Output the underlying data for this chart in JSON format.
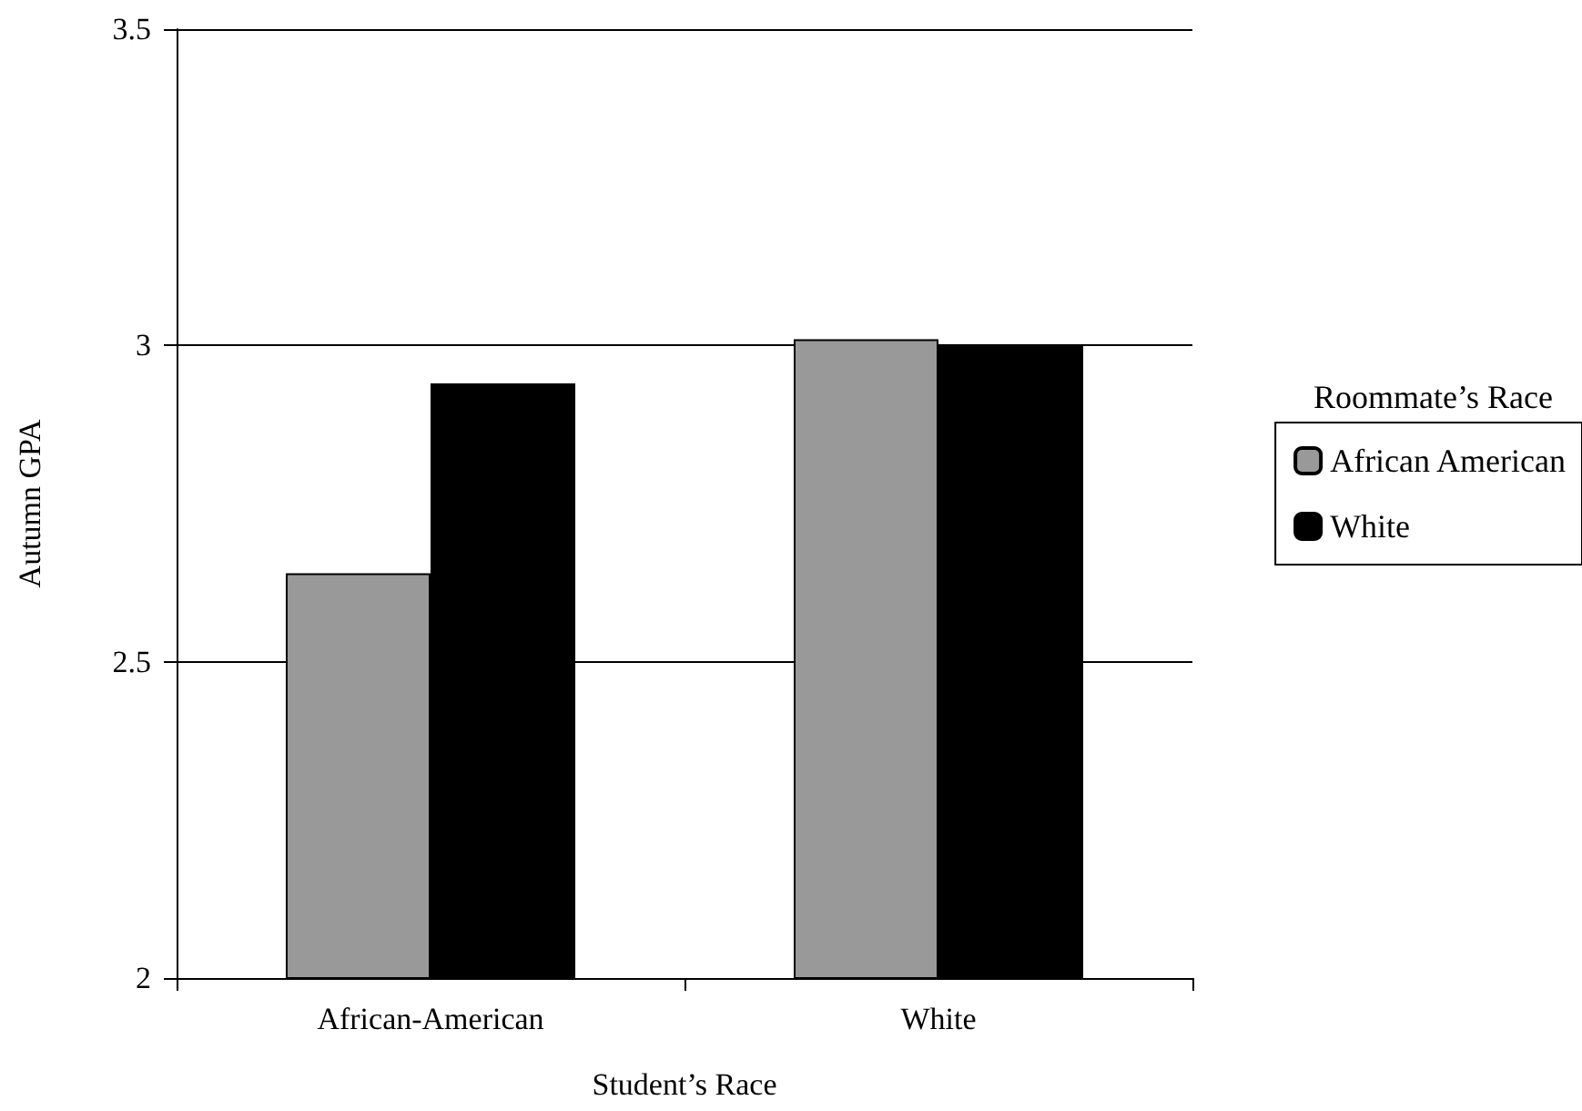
{
  "chart_data": {
    "type": "bar",
    "xlabel": "Student’s Race",
    "ylabel": "Autumn GPA",
    "legend_title": "Roommate’s Race",
    "categories": [
      "African-American",
      "White"
    ],
    "series": [
      {
        "name": "African American",
        "color": "#999999",
        "values": [
          2.64,
          3.01
        ]
      },
      {
        "name": "White",
        "color": "#000000",
        "values": [
          2.94,
          3.0
        ]
      }
    ],
    "ylim": [
      2,
      3.5
    ],
    "yticks": [
      2,
      2.5,
      3,
      3.5
    ],
    "grid": "y",
    "legend": "right"
  }
}
